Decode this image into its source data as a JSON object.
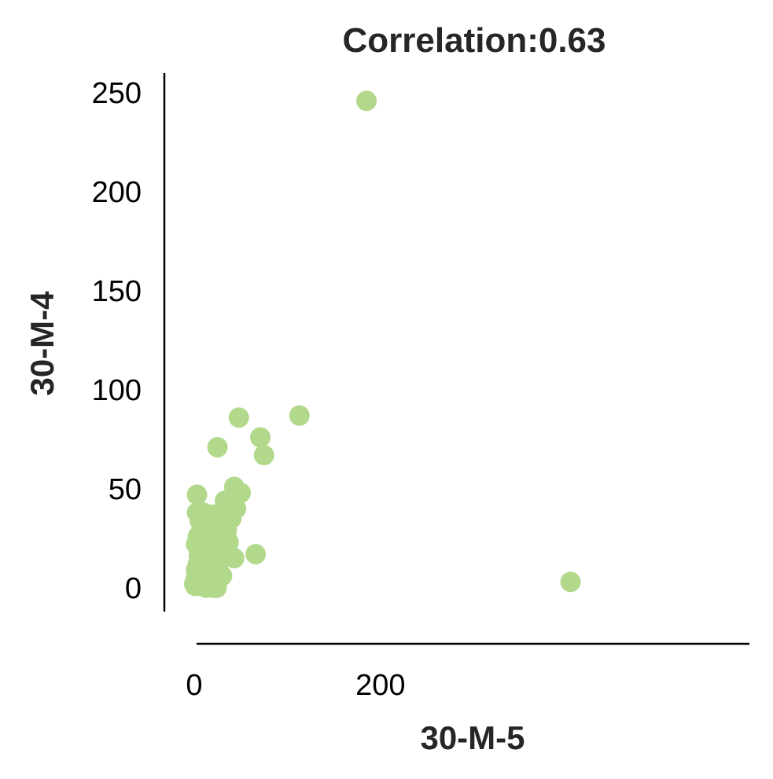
{
  "chart_data": {
    "type": "scatter",
    "title": "Correlation:0.63",
    "xlabel": "30-M-5",
    "ylabel": "30-M-4",
    "xlim": [
      -32,
      596
    ],
    "ylim": [
      -12,
      260
    ],
    "xticks": [
      0,
      200
    ],
    "yticks": [
      0,
      50,
      100,
      150,
      200,
      250
    ],
    "grid": false,
    "legend": "none",
    "marker_color": "#b2d98b",
    "points": [
      [
        185,
        246
      ],
      [
        404,
        3
      ],
      [
        113,
        87
      ],
      [
        48,
        86
      ],
      [
        71,
        76
      ],
      [
        75,
        67
      ],
      [
        25,
        71
      ],
      [
        66,
        17
      ],
      [
        3,
        47
      ],
      [
        43,
        51
      ],
      [
        50,
        48
      ],
      [
        33,
        44
      ],
      [
        39,
        43
      ],
      [
        45,
        40
      ],
      [
        36,
        38
      ],
      [
        40,
        35
      ],
      [
        31,
        33
      ],
      [
        27,
        30
      ],
      [
        22,
        28
      ],
      [
        18,
        25
      ],
      [
        14,
        22
      ],
      [
        10,
        38
      ],
      [
        3,
        38
      ],
      [
        6,
        34
      ],
      [
        12,
        36
      ],
      [
        20,
        37
      ],
      [
        8,
        30
      ],
      [
        4,
        26
      ],
      [
        2,
        22
      ],
      [
        10,
        22
      ],
      [
        7,
        19
      ],
      [
        15,
        18
      ],
      [
        22,
        16
      ],
      [
        28,
        20
      ],
      [
        33,
        18
      ],
      [
        38,
        17
      ],
      [
        43,
        15
      ],
      [
        26,
        12
      ],
      [
        20,
        10
      ],
      [
        16,
        8
      ],
      [
        12,
        12
      ],
      [
        8,
        14
      ],
      [
        4,
        12
      ],
      [
        2,
        9
      ],
      [
        6,
        6
      ],
      [
        10,
        5
      ],
      [
        14,
        4
      ],
      [
        18,
        3
      ],
      [
        22,
        2
      ],
      [
        26,
        4
      ],
      [
        30,
        6
      ],
      [
        3,
        3
      ],
      [
        1,
        1
      ],
      [
        5,
        1
      ],
      [
        9,
        2
      ],
      [
        13,
        0
      ],
      [
        17,
        1
      ],
      [
        21,
        0
      ],
      [
        24,
        0
      ],
      [
        2,
        5
      ],
      [
        7,
        9
      ],
      [
        11,
        7
      ],
      [
        16,
        13
      ],
      [
        19,
        20
      ],
      [
        24,
        24
      ],
      [
        29,
        27
      ],
      [
        35,
        29
      ],
      [
        28,
        34
      ],
      [
        24,
        31
      ],
      [
        15,
        27
      ],
      [
        9,
        29
      ],
      [
        17,
        33
      ],
      [
        13,
        31
      ],
      [
        37,
        23
      ],
      [
        31,
        24
      ],
      [
        5,
        16
      ],
      [
        0,
        2
      ]
    ]
  }
}
